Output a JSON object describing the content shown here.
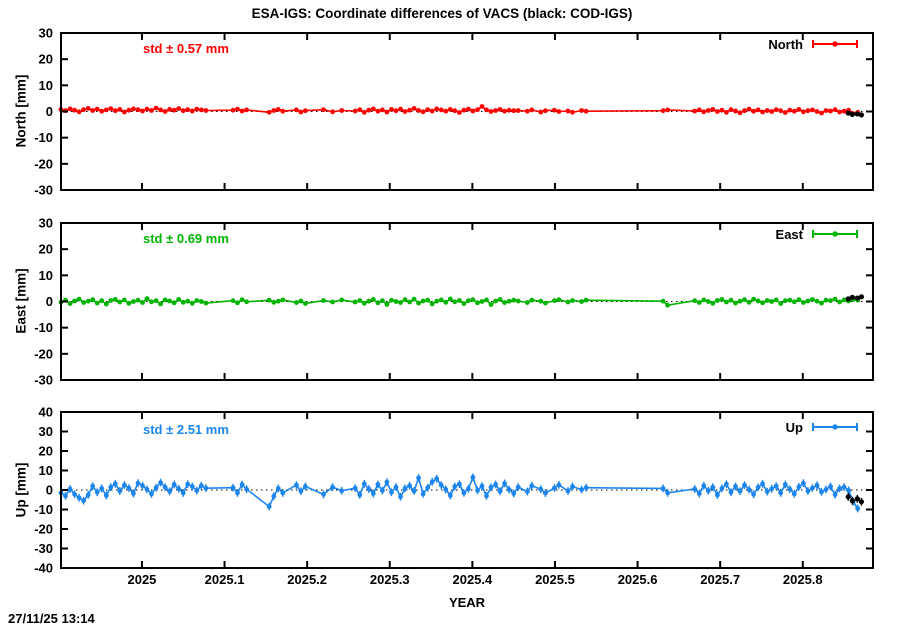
{
  "title": "ESA-IGS: Coordinate differences of VACS (black: COD-IGS)",
  "timestamp": "27/11/25 13:14",
  "axes": {
    "xlabel": "YEAR",
    "xlim": [
      2024.902,
      2025.885
    ],
    "xticks": [
      2025,
      2025.1,
      2025.2,
      2025.3,
      2025.4,
      2025.5,
      2025.6,
      2025.7,
      2025.8
    ],
    "xtick_labels": [
      "2025",
      "2025.1",
      "2025.2",
      "2025.3",
      "2025.4",
      "2025.5",
      "2025.6",
      "2025.7",
      "2025.8"
    ],
    "grid": false,
    "legend_position": "top-right-inside",
    "zero_line": "dotted"
  },
  "colors": {
    "north": "#ff0000",
    "east": "#00b400",
    "up": "#1c86ee",
    "cod_igs": "#000000",
    "text": "#000000",
    "background": "#ffffff"
  },
  "chart_data": [
    {
      "type": "scatter",
      "style": "linespoints-errorbars",
      "name": "North",
      "ylabel": "North [mm]",
      "std_label": "std ± 0.57 mm",
      "legend_label": "North",
      "color_key": "north",
      "ylim": [
        -30,
        30
      ],
      "yticks": [
        -30,
        -20,
        -10,
        0,
        10,
        20,
        30
      ],
      "err_mm": 0.6,
      "x_start": 2024.902,
      "x_step": 0.00548,
      "y": [
        0.8,
        0.3,
        1.0,
        0.5,
        -0.1,
        0.7,
        1.2,
        0.4,
        0.9,
        0.1,
        0.6,
        1.1,
        0.3,
        0.8,
        -0.2,
        0.5,
        1.0,
        0.7,
        0.2,
        0.9,
        0.4,
        1.3,
        0.6,
        0.0,
        0.8,
        0.5,
        1.1,
        0.3,
        0.7,
        0.2,
        0.9,
        0.6,
        0.4,
        null,
        null,
        null,
        null,
        null,
        0.5,
        0.9,
        0.2,
        0.6,
        null,
        null,
        null,
        null,
        -0.3,
        0.4,
        0.8,
        0.1,
        null,
        null,
        0.6,
        -0.2,
        0.3,
        null,
        null,
        null,
        0.7,
        null,
        -0.1,
        null,
        0.4,
        null,
        null,
        0.2,
        0.7,
        -0.3,
        0.5,
        1.0,
        0.1,
        0.6,
        -0.2,
        0.8,
        0.3,
        0.9,
        0.0,
        0.5,
        1.2,
        0.4,
        -0.1,
        0.7,
        0.2,
        1.0,
        0.6,
        0.1,
        0.8,
        0.3,
        -0.4,
        0.5,
        0.9,
        0.2,
        0.7,
        1.9,
        0.6,
        0.0,
        0.4,
        0.8,
        0.1,
        0.5,
        0.3,
        0.4,
        null,
        0.1,
        0.6,
        null,
        -0.2,
        0.3,
        null,
        0.5,
        0.0,
        null,
        0.2,
        -0.3,
        null,
        0.4,
        0.1,
        null,
        null,
        null,
        null,
        null,
        null,
        null,
        null,
        null,
        null,
        null,
        null,
        null,
        null,
        null,
        null,
        0.3,
        0.6,
        null,
        null,
        null,
        null,
        null,
        0.2,
        0.6,
        -0.1,
        0.4,
        0.8,
        0.0,
        0.5,
        -0.3,
        0.7,
        0.2,
        -0.5,
        0.3,
        0.9,
        0.1,
        0.6,
        -0.2,
        0.4,
        0.0,
        0.7,
        0.3,
        -0.4,
        0.5,
        0.1,
        0.8,
        -0.1,
        0.3,
        0.6,
        0.0,
        -0.6,
        0.4,
        0.2,
        0.7,
        -0.2,
        0.1,
        0.5,
        -0.8,
        -0.3
      ],
      "cod_igs": {
        "x": [
          2025.855,
          2025.86,
          2025.866,
          2025.871
        ],
        "y": [
          -0.6,
          -1.1,
          -0.9,
          -1.3
        ]
      }
    },
    {
      "type": "scatter",
      "style": "linespoints-errorbars",
      "name": "East",
      "ylabel": "East [mm]",
      "std_label": "std ± 0.69 mm",
      "legend_label": "East",
      "color_key": "east",
      "ylim": [
        -30,
        30
      ],
      "yticks": [
        -30,
        -20,
        -10,
        0,
        10,
        20,
        30
      ],
      "err_mm": 0.7,
      "x_start": 2024.902,
      "x_step": 0.00548,
      "y": [
        -0.3,
        0.5,
        -0.8,
        0.2,
        0.9,
        -0.4,
        0.1,
        0.7,
        -0.6,
        0.3,
        -1.0,
        0.4,
        0.8,
        -0.2,
        0.6,
        -0.7,
        0.0,
        0.5,
        -0.4,
        1.1,
        -0.1,
        0.3,
        -0.9,
        0.6,
        0.2,
        -0.5,
        0.8,
        -0.3,
        0.1,
        -0.7,
        0.4,
        0.0,
        -0.6,
        null,
        null,
        null,
        null,
        null,
        0.3,
        -0.5,
        0.7,
        -0.1,
        null,
        null,
        null,
        null,
        0.5,
        -0.3,
        0.1,
        0.6,
        null,
        null,
        -0.4,
        0.2,
        -0.8,
        null,
        null,
        null,
        0.4,
        null,
        -0.2,
        null,
        0.6,
        null,
        null,
        -0.2,
        0.4,
        -0.7,
        0.1,
        0.8,
        -0.5,
        0.3,
        -1.1,
        0.5,
        0.0,
        -0.4,
        0.7,
        -0.2,
        0.9,
        -0.6,
        0.2,
        0.5,
        -0.9,
        0.1,
        0.6,
        -0.3,
        1.0,
        -0.1,
        0.4,
        -0.8,
        0.3,
        0.7,
        -0.5,
        0.0,
        0.6,
        -1.2,
        0.2,
        0.8,
        -0.4,
        0.1,
        0.5,
        0.2,
        null,
        -0.4,
        0.5,
        null,
        0.1,
        -0.6,
        null,
        0.3,
        0.7,
        null,
        -0.2,
        0.4,
        null,
        0.0,
        0.5,
        null,
        null,
        null,
        null,
        null,
        null,
        null,
        null,
        null,
        null,
        null,
        null,
        null,
        null,
        null,
        null,
        0.1,
        -1.4,
        null,
        null,
        null,
        null,
        null,
        0.3,
        -0.4,
        0.6,
        0.0,
        -0.7,
        0.4,
        0.8,
        -0.2,
        0.5,
        -0.6,
        0.1,
        0.7,
        -0.3,
        0.9,
        0.2,
        -0.5,
        0.4,
        0.0,
        0.6,
        -0.8,
        0.3,
        0.5,
        -0.1,
        0.7,
        -0.4,
        0.2,
        0.8,
        0.1,
        -0.6,
        0.5,
        0.3,
        0.9,
        -0.2,
        0.6,
        0.2,
        0.8,
        0.5
      ],
      "cod_igs": {
        "x": [
          2025.855,
          2025.86,
          2025.866,
          2025.871
        ],
        "y": [
          1.0,
          1.6,
          1.3,
          1.8
        ]
      }
    },
    {
      "type": "scatter",
      "style": "linespoints-errorbars",
      "name": "Up",
      "ylabel": "Up [mm]",
      "std_label": "std ± 2.51 mm",
      "legend_label": "Up",
      "color_key": "up",
      "ylim": [
        -40,
        40
      ],
      "yticks": [
        -40,
        -30,
        -20,
        -10,
        0,
        10,
        20,
        30,
        40
      ],
      "err_mm": 2.0,
      "x_start": 2024.902,
      "x_step": 0.00548,
      "y": [
        -1.5,
        -3.0,
        0.5,
        -2.2,
        -4.0,
        -5.5,
        -2.5,
        2.0,
        -1.2,
        0.8,
        -2.8,
        1.5,
        3.2,
        -0.5,
        2.5,
        1.0,
        -1.8,
        3.5,
        2.2,
        0.3,
        -2.0,
        1.2,
        3.8,
        1.5,
        -0.7,
        2.8,
        0.6,
        -1.5,
        3.0,
        1.8,
        -0.3,
        2.2,
        0.9,
        null,
        null,
        null,
        null,
        null,
        1.2,
        -1.5,
        2.8,
        0.4,
        null,
        null,
        null,
        null,
        -8.5,
        -3.2,
        0.8,
        -1.5,
        null,
        null,
        2.5,
        -0.6,
        1.8,
        null,
        null,
        null,
        -2.2,
        null,
        1.5,
        null,
        -0.4,
        null,
        null,
        1.0,
        -2.5,
        3.2,
        0.5,
        -1.8,
        2.8,
        -0.3,
        4.0,
        -1.2,
        1.5,
        -3.5,
        0.8,
        2.2,
        -0.5,
        6.2,
        -2.0,
        1.2,
        4.2,
        5.8,
        2.5,
        0.3,
        -2.8,
        1.8,
        3.0,
        -1.5,
        0.6,
        6.5,
        -0.2,
        2.0,
        -3.0,
        1.4,
        2.8,
        -0.6,
        3.4,
        0.2,
        -1.8,
        1.5,
        null,
        -0.8,
        2.2,
        null,
        0.4,
        -1.6,
        null,
        1.0,
        2.6,
        null,
        -0.5,
        1.8,
        null,
        0.2,
        1.2,
        null,
        null,
        null,
        null,
        null,
        null,
        null,
        null,
        null,
        null,
        null,
        null,
        null,
        null,
        null,
        null,
        0.8,
        -1.5,
        null,
        null,
        null,
        null,
        null,
        0.5,
        -1.8,
        2.2,
        -0.4,
        1.5,
        -2.6,
        0.8,
        3.0,
        -1.2,
        1.8,
        -0.6,
        2.5,
        0.2,
        -2.2,
        1.4,
        3.2,
        -0.8,
        0.6,
        2.0,
        -1.5,
        2.8,
        0.4,
        -2.0,
        1.6,
        3.5,
        -0.5,
        1.0,
        2.4,
        -1.0,
        0.3,
        1.8,
        -2.4,
        0.8,
        1.5,
        -0.2,
        -6.0,
        -9.5
      ],
      "cod_igs": {
        "x": [
          2025.855,
          2025.86,
          2025.866,
          2025.871
        ],
        "y": [
          -3.5,
          -5.5,
          -4.5,
          -6.0
        ]
      }
    }
  ]
}
